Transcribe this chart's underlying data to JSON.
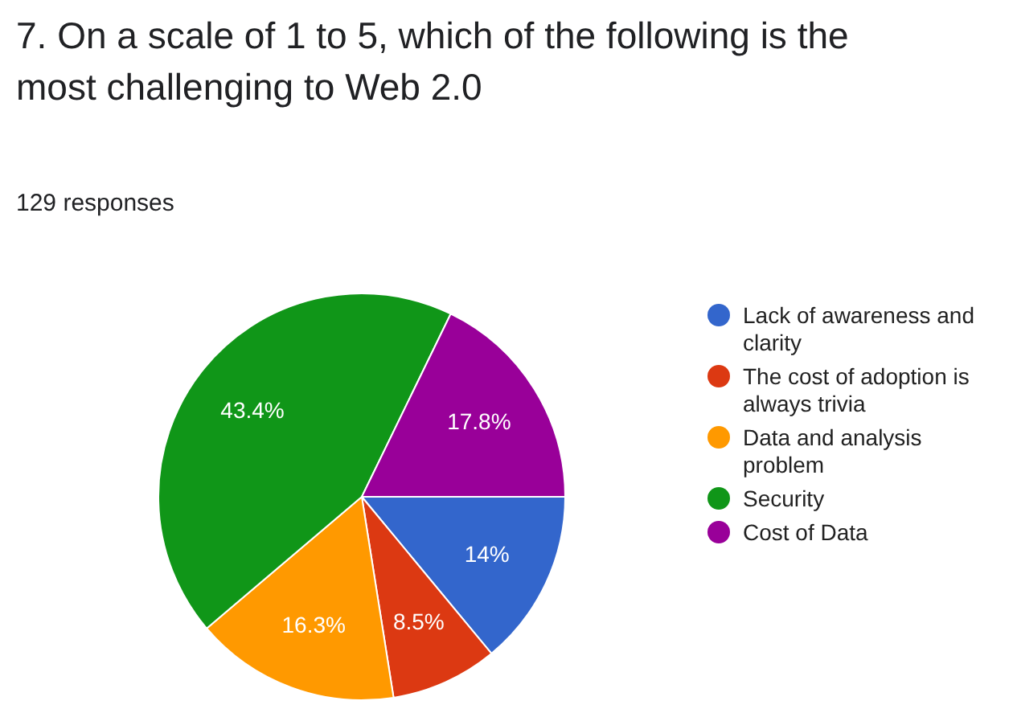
{
  "chart_data": {
    "type": "pie",
    "title": "7. On a scale of 1 to 5, which of the following is the most challenging to Web 2.0",
    "subtitle": "129 responses",
    "categories": [
      "Lack of awareness and clarity",
      "The cost of adoption is always trivia",
      "Data and analysis problem",
      "Security",
      "Cost of Data"
    ],
    "values": [
      14,
      8.5,
      16.3,
      43.4,
      17.8
    ],
    "colors": [
      "#3366cc",
      "#dc3912",
      "#ff9900",
      "#109618",
      "#990099"
    ],
    "value_labels": [
      "14%",
      "8.5%",
      "16.3%",
      "43.4%",
      "17.8%"
    ],
    "legend": "right"
  }
}
